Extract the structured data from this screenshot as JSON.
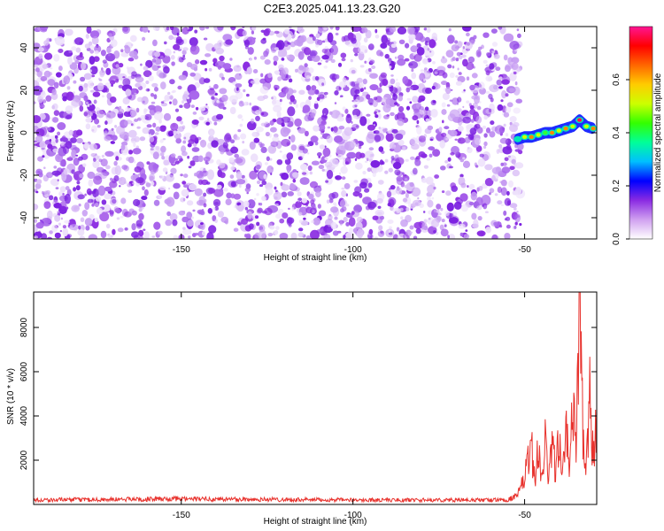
{
  "title": "C2E3.2025.041.13.23.G20",
  "chart_data": [
    {
      "type": "heatmap",
      "xlabel": "Height of straight line (km)",
      "ylabel": "Frequency (Hz)",
      "xlim": [
        -193,
        -29
      ],
      "ylim": [
        -50,
        50
      ],
      "x_ticks": [
        -150,
        -100,
        -50
      ],
      "y_ticks": [
        -40,
        -20,
        0,
        20,
        40
      ],
      "colorbar": {
        "label": "Normalized spectral amplitude",
        "range": [
          0,
          0.8
        ],
        "ticks": [
          0.0,
          0.2,
          0.4,
          0.6
        ],
        "colors": [
          "#ffffff",
          "#d0a0f0",
          "#8a2be2",
          "#0000ff",
          "#00bfff",
          "#00ff99",
          "#33ff00",
          "#ccff00",
          "#ffcc00",
          "#ff6600",
          "#ff0000",
          "#ff1493"
        ]
      },
      "noise_region": {
        "x": [
          -193,
          -51
        ],
        "y": [
          -50,
          50
        ],
        "amplitude_approx": 0.03
      },
      "signal_track": [
        {
          "x": -52,
          "y": -3,
          "amp": 0.35
        },
        {
          "x": -50,
          "y": -2,
          "amp": 0.5
        },
        {
          "x": -48,
          "y": -2,
          "amp": 0.6
        },
        {
          "x": -46,
          "y": -1,
          "amp": 0.5
        },
        {
          "x": -44,
          "y": 0,
          "amp": 0.45
        },
        {
          "x": -42,
          "y": 0,
          "amp": 0.7
        },
        {
          "x": -40,
          "y": 1,
          "amp": 0.55
        },
        {
          "x": -38,
          "y": 2,
          "amp": 0.6
        },
        {
          "x": -36,
          "y": 3,
          "amp": 0.5
        },
        {
          "x": -34,
          "y": 6,
          "amp": 0.8
        },
        {
          "x": -32,
          "y": 3,
          "amp": 0.5
        },
        {
          "x": -30,
          "y": 2,
          "amp": 0.6
        }
      ]
    },
    {
      "type": "line",
      "xlabel": "Height of straight line (km)",
      "ylabel": "SNR (10 * v/v)",
      "xlim": [
        -193,
        -29
      ],
      "ylim": [
        0,
        9600
      ],
      "x_ticks": [
        -150,
        -100,
        -50
      ],
      "y_ticks": [
        2000,
        4000,
        6000,
        8000
      ],
      "color": "#e8322d",
      "series": [
        {
          "x": [
            -193,
            -150,
            -100,
            -55,
            -52,
            -50,
            -48,
            -47,
            -46,
            -45,
            -44,
            -43,
            -42,
            -41,
            -40,
            -39,
            -38,
            -37,
            -36,
            -35,
            -34,
            -33,
            -32,
            -31,
            -30,
            -29
          ],
          "values": [
            200,
            250,
            200,
            200,
            400,
            1200,
            2600,
            1200,
            2400,
            1500,
            2900,
            1000,
            3100,
            1500,
            2800,
            1300,
            3300,
            1800,
            4700,
            2200,
            9500,
            3500,
            2000,
            4800,
            2000,
            4200
          ]
        }
      ]
    }
  ]
}
